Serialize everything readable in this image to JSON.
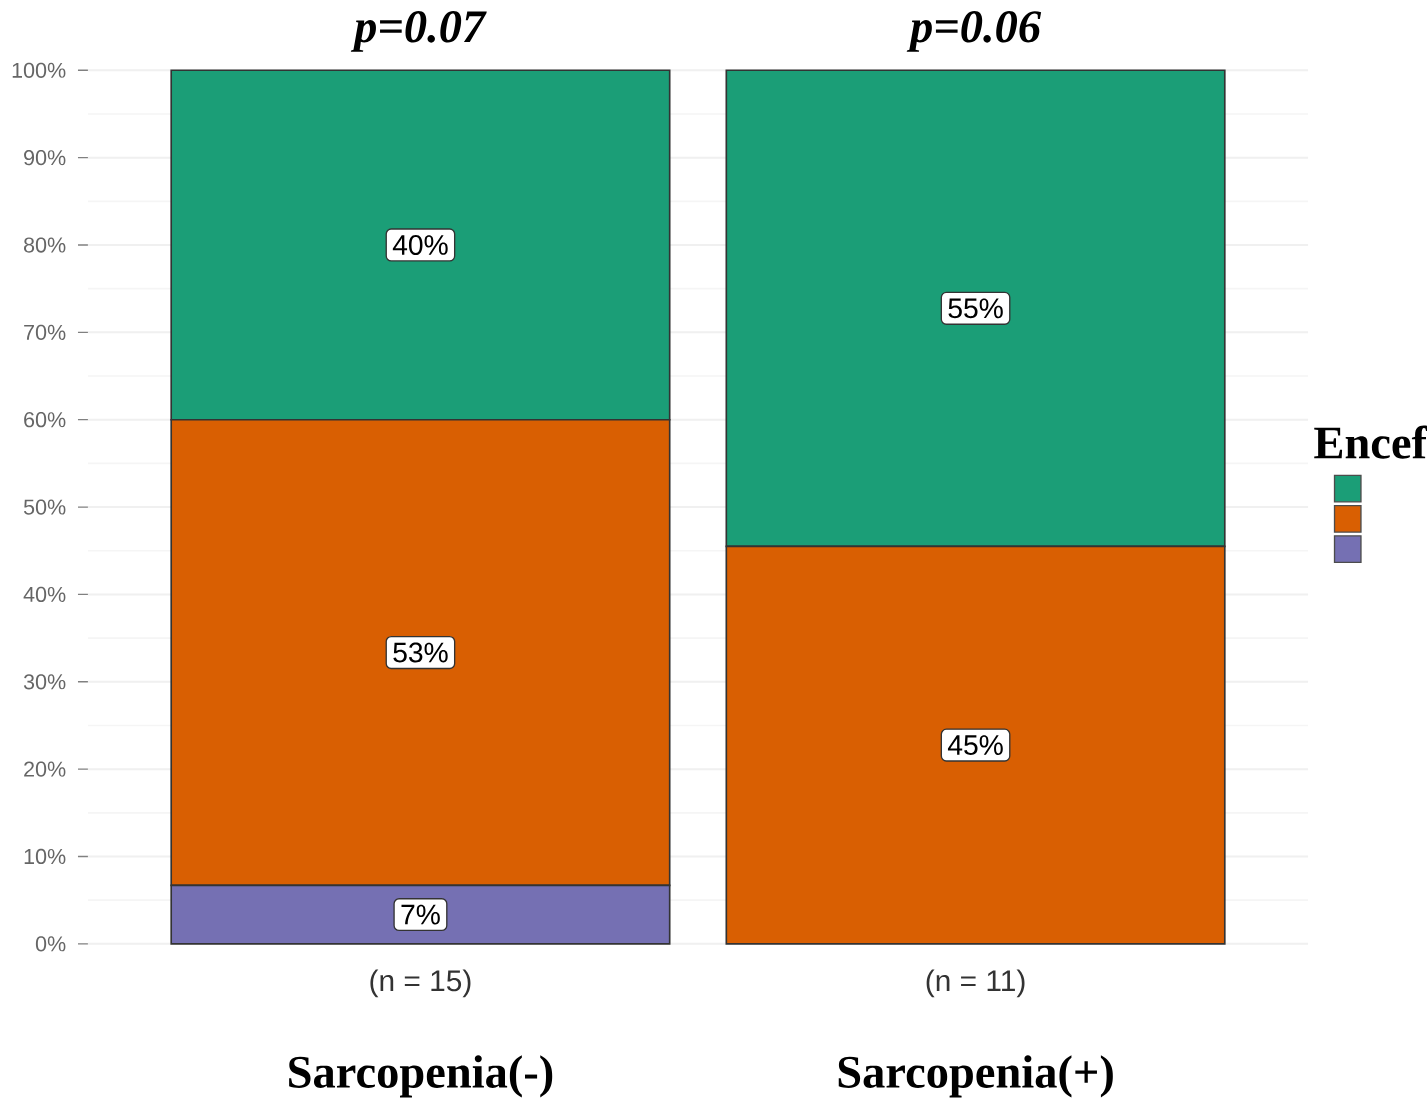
{
  "chart_data": {
    "type": "bar",
    "stacked": true,
    "categories": [
      "Sarcopenia(-)",
      "Sarcopenia(+)"
    ],
    "series": [
      {
        "color": "#7570b3",
        "values": [
          6.7,
          0
        ],
        "value_labels": [
          "7%",
          null
        ]
      },
      {
        "color": "#d95f02",
        "values": [
          53.3,
          45.5
        ],
        "value_labels": [
          "53%",
          "45%"
        ]
      },
      {
        "color": "#1b9e77",
        "values": [
          40,
          54.5
        ],
        "value_labels": [
          "40%",
          "55%"
        ]
      }
    ],
    "ylim": [
      0,
      100
    ],
    "yticks": [
      {
        "value": 0,
        "label": "0%"
      },
      {
        "value": 10,
        "label": "10%"
      },
      {
        "value": 20,
        "label": "20%"
      },
      {
        "value": 30,
        "label": "30%"
      },
      {
        "value": 40,
        "label": "40%"
      },
      {
        "value": 50,
        "label": "50%"
      },
      {
        "value": 60,
        "label": "60%"
      },
      {
        "value": 70,
        "label": "70%"
      },
      {
        "value": 80,
        "label": "80%"
      },
      {
        "value": 90,
        "label": "90%"
      },
      {
        "value": 100,
        "label": "100%"
      }
    ],
    "grid": "y",
    "legend_title": "Encef",
    "annotations": [
      "*p=0.07*",
      "*p=0.06*",
      "(n = 15)",
      "(n = 11)"
    ]
  }
}
